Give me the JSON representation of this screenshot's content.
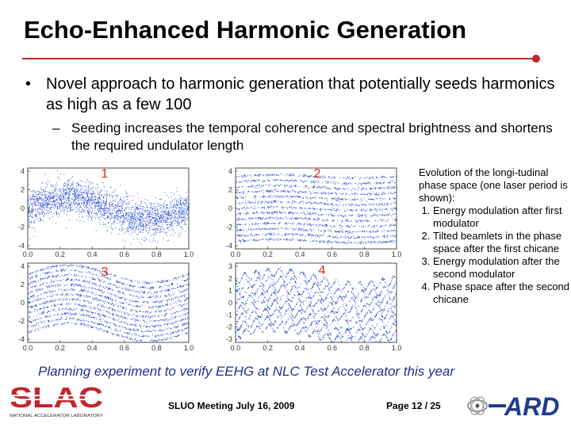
{
  "slide": {
    "title": "Echo-Enhanced Harmonic Generation",
    "bullet_main": "Novel approach to harmonic generation that potentially seeds harmonics as high as a few 100",
    "bullet_main_marker": "•",
    "bullet_sub": "Seeding increases the temporal coherence and spectral brightness and shortens the required undulator length",
    "bullet_sub_marker": "–",
    "planning": "Planning experiment to verify EEHG at NLC Test Accelerator this year",
    "footer_meeting": "SLUO Meeting July 16, 2009",
    "footer_page": "Page 12 / 25"
  },
  "side_text": {
    "intro": "Evolution of the longi-tudinal phase space (one laser period is shown):",
    "items": [
      "Energy modulation after first modulator",
      "Tilted beamlets in the phase space after the first chicane",
      "Energy modulation after the second modulator",
      "Phase space after the second chicane"
    ]
  },
  "logos": {
    "slac_text": "SLAC",
    "slac_sub": "NATIONAL ACCELERATOR LABORATORY",
    "ard_text": "ARD"
  },
  "colors": {
    "accent_red": "#c0272d",
    "plot_blue": "#1a3fd0",
    "planning_blue": "#1f2f8e",
    "label_red": "#d42a1a"
  },
  "chart_data": [
    {
      "type": "scatter",
      "panel_label": "1",
      "description": "Energy modulation after first modulator",
      "x_ticks": [
        "0.0",
        "0.2",
        "0.4",
        "0.6",
        "0.8",
        "1.0"
      ],
      "y_ticks": [
        "4",
        "2",
        "0",
        "-2",
        "-4"
      ],
      "xlim": [
        0,
        1
      ],
      "ylim": [
        -4.5,
        4.5
      ]
    },
    {
      "type": "scatter",
      "panel_label": "2",
      "description": "Tilted beamlets after first chicane",
      "x_ticks": [
        "0.0",
        "0.2",
        "0.4",
        "0.6",
        "0.8",
        "1.0"
      ],
      "y_ticks": [
        "4",
        "2",
        "0",
        "-2",
        "-4"
      ],
      "xlim": [
        0,
        1
      ],
      "ylim": [
        -4.5,
        4.5
      ]
    },
    {
      "type": "scatter",
      "panel_label": "3",
      "description": "Energy modulation after second modulator",
      "x_ticks": [
        "0.0",
        "0.2",
        "0.4",
        "0.6",
        "0.8",
        "1.0"
      ],
      "y_ticks": [
        "4",
        "2",
        "0",
        "-2",
        "-4"
      ],
      "xlim": [
        0,
        1
      ],
      "ylim": [
        -4.5,
        4.5
      ]
    },
    {
      "type": "scatter",
      "panel_label": "4",
      "description": "Phase space after second chicane",
      "x_ticks": [
        "0.0",
        "0.2",
        "0.4",
        "0.6",
        "0.8",
        "1.0"
      ],
      "y_ticks": [
        "3",
        "2",
        "1",
        "0",
        "-1",
        "-2",
        "-3"
      ],
      "xlim": [
        0,
        1
      ],
      "ylim": [
        -3.5,
        3.5
      ]
    }
  ]
}
